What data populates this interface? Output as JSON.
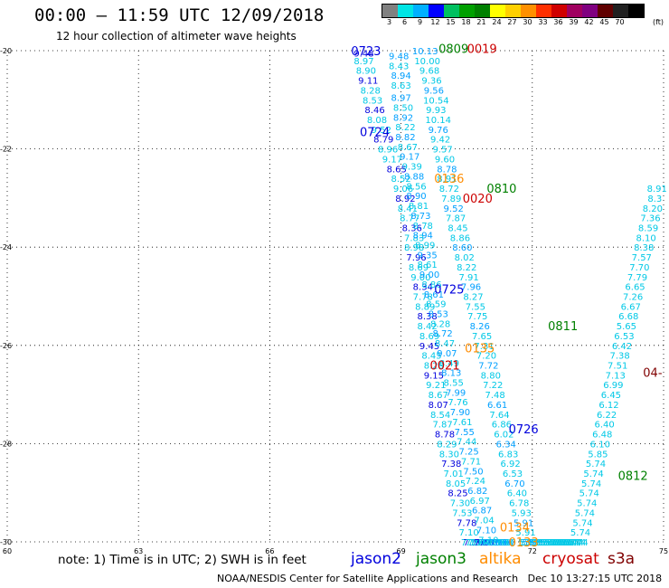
{
  "header": {
    "title": "00:00 – 11:59 UTC 12/09/2018",
    "subtitle": "12 hour collection of altimeter wave heights"
  },
  "legend": {
    "ticks": [
      "3",
      "6",
      "9",
      "12",
      "15",
      "18",
      "21",
      "24",
      "27",
      "30",
      "33",
      "36",
      "39",
      "42",
      "45",
      "70"
    ],
    "colors": [
      "#808080",
      "#00e5e5",
      "#00b0ff",
      "#0000ff",
      "#00c060",
      "#00a000",
      "#008000",
      "#ffff00",
      "#ffd000",
      "#ff9000",
      "#ff3000",
      "#d00000",
      "#a00060",
      "#800080",
      "#600000",
      "#202020",
      "#000000"
    ],
    "unit": "(ft)"
  },
  "footer": {
    "note": "note: 1) Time is in UTC; 2) SWH is in feet",
    "satellites": [
      {
        "name": "jason2",
        "color": "#0000dd"
      },
      {
        "name": "jason3",
        "color": "#008000"
      },
      {
        "name": "altika",
        "color": "#ff8c00"
      },
      {
        "name": "cryosat",
        "color": "#cc0000"
      },
      {
        "name": "s3a",
        "color": "#800000"
      }
    ],
    "credit": "NOAA/NESDIS Center for Satellite Applications and Research   Dec 10 13:27:15 UTC 2018"
  },
  "chart_data": {
    "type": "scatter",
    "title": "00:00 – 11:59 UTC 12/09/2018",
    "subtitle": "12 hour collection of altimeter wave heights",
    "xlabel": "",
    "ylabel": "",
    "xlim": [
      60,
      75
    ],
    "ylim": [
      -30,
      -20
    ],
    "x_ticks": [
      60,
      63,
      66,
      69,
      72,
      75
    ],
    "y_ticks": [
      -20,
      -22,
      -24,
      -26,
      -28,
      -30
    ],
    "grid": true,
    "units": "ft",
    "colors": {
      "light": "#00c8e6",
      "mid": "#00a0ff",
      "dark": "#0000dd"
    },
    "pass_labels": [
      {
        "text": "0723",
        "x": 68.2,
        "y": -20.0,
        "color": "#0000dd"
      },
      {
        "text": "0724",
        "x": 68.4,
        "y": -21.65,
        "color": "#0000dd"
      },
      {
        "text": "0725",
        "x": 70.1,
        "y": -24.85,
        "color": "#0000dd"
      },
      {
        "text": "0726",
        "x": 71.8,
        "y": -27.7,
        "color": "#0000dd"
      },
      {
        "text": "0809",
        "x": 70.2,
        "y": -19.95,
        "color": "#008000"
      },
      {
        "text": "0810",
        "x": 71.3,
        "y": -22.8,
        "color": "#008000"
      },
      {
        "text": "0811",
        "x": 72.7,
        "y": -25.6,
        "color": "#008000"
      },
      {
        "text": "0812",
        "x": 74.3,
        "y": -28.65,
        "color": "#008000"
      },
      {
        "text": "0019",
        "x": 70.85,
        "y": -19.95,
        "color": "#cc0000"
      },
      {
        "text": "0020",
        "x": 70.75,
        "y": -23.0,
        "color": "#cc0000"
      },
      {
        "text": "0021",
        "x": 70.0,
        "y": -26.4,
        "color": "#cc0000"
      },
      {
        "text": "0135",
        "x": 70.8,
        "y": -26.05,
        "color": "#ff8c00"
      },
      {
        "text": "0134",
        "x": 71.6,
        "y": -29.7,
        "color": "#ff8c00"
      },
      {
        "text": "0133",
        "x": 71.8,
        "y": -30.0,
        "color": "#ff8c00"
      },
      {
        "text": "0136",
        "x": 70.1,
        "y": -22.6,
        "color": "#ff8c00"
      },
      {
        "text": "04-",
        "x": 74.75,
        "y": -26.55,
        "color": "#800000"
      }
    ],
    "series": [
      {
        "name": "0723",
        "x": [
          68.15,
          68.15,
          68.2,
          68.25,
          68.3,
          68.35,
          68.4,
          68.45,
          68.55,
          68.6,
          68.7,
          68.8,
          68.9,
          69.0,
          69.05,
          69.1,
          69.15,
          69.2,
          69.25,
          69.3,
          69.3,
          69.35,
          69.4,
          69.45,
          69.5,
          69.5,
          69.55,
          69.6,
          69.6,
          69.65,
          69.65,
          69.7,
          69.75,
          69.75,
          69.8,
          69.85,
          69.85,
          69.9,
          69.95,
          70.0,
          70.05,
          70.1,
          70.15,
          70.2,
          70.25,
          70.3,
          70.35,
          70.4,
          70.5,
          70.55,
          70.6,
          70.65,
          70.7,
          70.75,
          70.75,
          70.8,
          70.85,
          70.9
        ],
        "y": [
          -20.05,
          -20.2,
          -20.4,
          -20.6,
          -20.8,
          -21.0,
          -21.2,
          -21.4,
          -21.6,
          -21.8,
          -22.0,
          -22.2,
          -22.4,
          -22.6,
          -22.8,
          -23.0,
          -23.2,
          -23.4,
          -23.6,
          -23.8,
          -24.0,
          -24.2,
          -24.4,
          -24.6,
          -24.8,
          -25.0,
          -25.2,
          -25.4,
          -25.6,
          -25.8,
          -26.0,
          -26.2,
          -26.4,
          -26.6,
          -26.8,
          -27.0,
          -27.2,
          -27.4,
          -27.6,
          -27.8,
          -28.0,
          -28.2,
          -28.4,
          -28.6,
          -28.8,
          -29.0,
          -29.2,
          -29.4,
          -29.6,
          -29.8,
          -30.0,
          -30.0,
          -30.0,
          -30.0,
          -30.0,
          -30.0,
          -30.0,
          -30.0
        ],
        "labels": [
          "9.48",
          "8.97",
          "8.90",
          "9.11",
          "8.28",
          "8.53",
          "8.46",
          "8.08",
          "9.52",
          "8.79",
          "8.96",
          "9.17",
          "8.65",
          "8.52",
          "9.06",
          "8.92",
          "8.41",
          "8.77",
          "8.36",
          "7.83",
          "8.98",
          "7.96",
          "8.69",
          "9.00",
          "8.34",
          "7.78",
          "8.89",
          "8.38",
          "8.42",
          "8.69",
          "9.45",
          "8.45",
          "8.28",
          "9.15",
          "9.21",
          "8.67",
          "8.07",
          "8.54",
          "7.87",
          "8.78",
          "8.29",
          "8.30",
          "7.38",
          "7.01",
          "8.05",
          "8.25",
          "7.30",
          "7.53",
          "7.78",
          "7.10",
          "7.10",
          "7.10",
          "7.10",
          "7.10",
          "7.10",
          "7.10",
          "7.10",
          "7.10"
        ]
      },
      {
        "name": "0724",
        "x": [
          68.95,
          68.95,
          69.0,
          69.0,
          69.0,
          69.05,
          69.05,
          69.1,
          69.1,
          69.15,
          69.2,
          69.25,
          69.3,
          69.35,
          69.35,
          69.4,
          69.45,
          69.5,
          69.5,
          69.55,
          69.6,
          69.6,
          69.65,
          69.7,
          69.75,
          69.8,
          69.85,
          69.9,
          69.95,
          70.0,
          70.05,
          70.1,
          70.15,
          70.2,
          70.25,
          70.3,
          70.35,
          70.4,
          70.45,
          70.5,
          70.55,
          70.6,
          70.65,
          70.7,
          70.75,
          70.8,
          70.85,
          70.9,
          70.95,
          71.0,
          71.05,
          71.1,
          71.15,
          71.2,
          71.25,
          71.3,
          71.35,
          71.4
        ],
        "y": [
          -20.1,
          -20.3,
          -20.5,
          -20.7,
          -20.95,
          -21.15,
          -21.35,
          -21.55,
          -21.75,
          -21.95,
          -22.15,
          -22.35,
          -22.55,
          -22.75,
          -22.95,
          -23.15,
          -23.35,
          -23.55,
          -23.75,
          -23.95,
          -24.15,
          -24.35,
          -24.55,
          -24.75,
          -24.95,
          -25.15,
          -25.35,
          -25.55,
          -25.75,
          -25.95,
          -26.15,
          -26.35,
          -26.55,
          -26.75,
          -26.95,
          -27.15,
          -27.35,
          -27.55,
          -27.75,
          -27.95,
          -28.15,
          -28.35,
          -28.55,
          -28.75,
          -28.95,
          -29.15,
          -29.35,
          -29.55,
          -29.75,
          -29.95,
          -30.0,
          -30.0,
          -30.0,
          -30.0,
          -30.0,
          -30.0,
          -30.0,
          -30.0
        ],
        "labels": [
          "9.48",
          "8.43",
          "8.94",
          "8.63",
          "8.97",
          "8.50",
          "8.92",
          "8.22",
          "8.82",
          "8.67",
          "9.17",
          "9.39",
          "8.88",
          "8.56",
          "8.90",
          "8.81",
          "8.73",
          "8.78",
          "8.94",
          "8.99",
          "9.35",
          "8.61",
          "9.00",
          "8.86",
          "8.61",
          "8.59",
          "8.53",
          "8.28",
          "8.72",
          "8.47",
          "9.07",
          "8.49",
          "8.13",
          "8.55",
          "7.99",
          "7.76",
          "7.90",
          "7.61",
          "7.55",
          "7.44",
          "7.25",
          "7.71",
          "7.50",
          "7.24",
          "6.82",
          "6.97",
          "6.87",
          "7.04",
          "7.10",
          "7.10",
          "7.10",
          "7.10",
          "7.10",
          "7.10",
          "7.10",
          "7.10",
          "7.10",
          "7.10"
        ]
      },
      {
        "name": "0809",
        "x": [
          69.55,
          69.6,
          69.65,
          69.7,
          69.75,
          69.8,
          69.8,
          69.85,
          69.85,
          69.9,
          69.95,
          70.0,
          70.05,
          70.05,
          70.1,
          70.15,
          70.2,
          70.25,
          70.3,
          70.35,
          70.4,
          70.45,
          70.5,
          70.55,
          70.6,
          70.65,
          70.7,
          70.75,
          70.8,
          70.85,
          70.9,
          70.95,
          71.0,
          71.05,
          71.1,
          71.15,
          71.2,
          71.25,
          71.3,
          71.35,
          71.4,
          71.45,
          71.5,
          71.55,
          71.6,
          71.65,
          71.7,
          71.75,
          71.8,
          71.85,
          71.9,
          71.95,
          72.0,
          72.0,
          72.05,
          72.1,
          72.15,
          72.2
        ],
        "y": [
          -20.0,
          -20.2,
          -20.4,
          -20.6,
          -20.8,
          -21.0,
          -21.2,
          -21.4,
          -21.6,
          -21.8,
          -22.0,
          -22.2,
          -22.4,
          -22.6,
          -22.8,
          -23.0,
          -23.2,
          -23.4,
          -23.6,
          -23.8,
          -24.0,
          -24.2,
          -24.4,
          -24.6,
          -24.8,
          -25.0,
          -25.2,
          -25.4,
          -25.6,
          -25.8,
          -26.0,
          -26.2,
          -26.4,
          -26.6,
          -26.8,
          -27.0,
          -27.2,
          -27.4,
          -27.6,
          -27.8,
          -28.0,
          -28.2,
          -28.4,
          -28.6,
          -28.8,
          -29.0,
          -29.2,
          -29.4,
          -29.6,
          -29.8,
          -30.0,
          -30.0,
          -30.0,
          -30.0,
          -30.0,
          -30.0,
          -30.0,
          -30.0
        ],
        "labels": [
          "10.13",
          "10.00",
          "9.68",
          "9.36",
          "9.56",
          "10.54",
          "9.93",
          "10.14",
          "9.76",
          "9.42",
          "9.57",
          "9.60",
          "8.78",
          "8.91",
          "8.72",
          "7.89",
          "9.52",
          "7.87",
          "8.45",
          "8.86",
          "8.60",
          "8.02",
          "8.22",
          "7.91",
          "7.96",
          "8.27",
          "7.55",
          "7.75",
          "8.26",
          "7.65",
          "7.31",
          "7.20",
          "7.72",
          "8.80",
          "7.22",
          "7.48",
          "6.61",
          "7.64",
          "6.86",
          "6.02",
          "6.34",
          "6.83",
          "6.92",
          "6.53",
          "6.70",
          "6.40",
          "6.78",
          "5.93",
          "5.91",
          "5.91",
          "5.91",
          "5.91",
          "5.91",
          "5.91",
          "5.91",
          "5.91",
          "5.91",
          "5.91"
        ]
      },
      {
        "name": "0811",
        "x": [
          74.85,
          74.8,
          74.75,
          74.7,
          74.65,
          74.6,
          74.55,
          74.5,
          74.45,
          74.4,
          74.35,
          74.3,
          74.25,
          74.2,
          74.15,
          74.1,
          74.05,
          74.0,
          73.95,
          73.9,
          73.85,
          73.8,
          73.75,
          73.7,
          73.65,
          73.6,
          73.55,
          73.5,
          73.45,
          73.4,
          73.35,
          73.3,
          73.25,
          73.2,
          73.15,
          73.1,
          73.05,
          73.0,
          72.95,
          72.9,
          72.85,
          72.8,
          72.75,
          72.7,
          72.65,
          72.6,
          72.55,
          72.5,
          72.45,
          72.4,
          72.35,
          72.3,
          72.25,
          72.2,
          72.15,
          72.1,
          72.05,
          72.0
        ],
        "y": [
          -22.8,
          -23.0,
          -23.2,
          -23.4,
          -23.6,
          -23.8,
          -24.0,
          -24.2,
          -24.4,
          -24.6,
          -24.8,
          -25.0,
          -25.2,
          -25.4,
          -25.6,
          -25.8,
          -26.0,
          -26.2,
          -26.4,
          -26.6,
          -26.8,
          -27.0,
          -27.2,
          -27.4,
          -27.6,
          -27.8,
          -28.0,
          -28.2,
          -28.4,
          -28.6,
          -28.8,
          -29.0,
          -29.2,
          -29.4,
          -29.6,
          -29.8,
          -30.0,
          -30.0,
          -30.0,
          -30.0,
          -30.0,
          -30.0,
          -30.0,
          -30.0,
          -30.0,
          -30.0,
          -30.0,
          -30.0,
          -30.0,
          -30.0,
          -30.0,
          -30.0,
          -30.0,
          -30.0,
          -30.0,
          -30.0,
          -30.0,
          -30.0
        ],
        "labels": [
          "8.91",
          "8.3",
          "8.20",
          "7.36",
          "8.59",
          "8.10",
          "8.38",
          "7.57",
          "7.70",
          "7.79",
          "6.65",
          "7.26",
          "6.67",
          "6.68",
          "5.65",
          "6.53",
          "6.42",
          "7.38",
          "7.51",
          "7.13",
          "6.99",
          "6.45",
          "6.12",
          "6.22",
          "6.40",
          "6.48",
          "6.10",
          "5.85",
          "5.74",
          "5.74",
          "5.74",
          "5.74",
          "5.74",
          "5.74",
          "5.74",
          "5.74",
          "5.74",
          "5.74",
          "5.74",
          "5.74",
          "5.74",
          "5.74",
          "5.74",
          "5.74",
          "5.74",
          "5.74",
          "5.74",
          "5.74",
          "5.74",
          "5.74",
          "5.74",
          "5.74",
          "5.74",
          "5.74",
          "5.74",
          "5.74",
          "5.74",
          "5.74"
        ]
      }
    ]
  }
}
